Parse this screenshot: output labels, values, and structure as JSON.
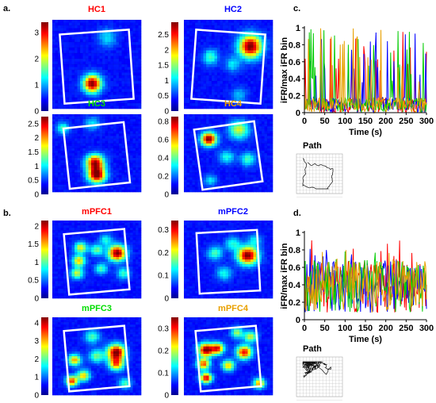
{
  "panel_labels": {
    "a": "a.",
    "b": "b.",
    "c": "c.",
    "d": "d."
  },
  "colors": {
    "HC1": "#ff0000",
    "HC2": "#0000ff",
    "HC3": "#00dd00",
    "HC4": "#e8a000",
    "mPFC1": "#ff0000",
    "mPFC2": "#0000ff",
    "mPFC3": "#00dd00",
    "mPFC4": "#e8a000"
  },
  "path_label": "Path",
  "chart_data": [
    {
      "type": "heatmap",
      "title": "HC1",
      "colorbar_ticks": [
        "0",
        "1",
        "2",
        "3"
      ],
      "colorbar_range": [
        0,
        3.4
      ],
      "fields": [
        {
          "x": 0.45,
          "y": 0.72,
          "amp": 1.0,
          "s": 0.07
        },
        {
          "x": 0.62,
          "y": 0.2,
          "amp": 0.25,
          "s": 0.07
        }
      ]
    },
    {
      "type": "heatmap",
      "title": "HC2",
      "colorbar_ticks": [
        "0",
        "0.5",
        "1",
        "1.5",
        "2",
        "2.5"
      ],
      "colorbar_range": [
        0,
        2.9
      ],
      "fields": [
        {
          "x": 0.75,
          "y": 0.3,
          "amp": 1.0,
          "s": 0.09
        },
        {
          "x": 0.3,
          "y": 0.42,
          "amp": 0.35,
          "s": 0.06
        },
        {
          "x": 0.55,
          "y": 0.5,
          "amp": 0.25,
          "s": 0.06
        },
        {
          "x": 0.62,
          "y": 0.85,
          "amp": 0.2,
          "s": 0.06
        }
      ]
    },
    {
      "type": "heatmap",
      "title": "HC3",
      "colorbar_ticks": [
        "0",
        "0.5",
        "1",
        "1.5",
        "2",
        "2.5"
      ],
      "colorbar_range": [
        0,
        2.75
      ],
      "fields": [
        {
          "x": 0.48,
          "y": 0.62,
          "amp": 0.9,
          "s": 0.07
        },
        {
          "x": 0.5,
          "y": 0.78,
          "amp": 1.0,
          "s": 0.07
        },
        {
          "x": 0.12,
          "y": 0.18,
          "amp": 0.35,
          "s": 0.05
        },
        {
          "x": 0.45,
          "y": 0.12,
          "amp": 0.25,
          "s": 0.06
        }
      ]
    },
    {
      "type": "heatmap",
      "title": "HC4",
      "colorbar_ticks": [
        "0",
        "0.2",
        "0.4",
        "0.6",
        "0.8"
      ],
      "colorbar_range": [
        0,
        0.85
      ],
      "fields": [
        {
          "x": 0.28,
          "y": 0.32,
          "amp": 1.0,
          "s": 0.06
        },
        {
          "x": 0.62,
          "y": 0.2,
          "amp": 0.5,
          "s": 0.08
        },
        {
          "x": 0.48,
          "y": 0.55,
          "amp": 0.3,
          "s": 0.06
        },
        {
          "x": 0.72,
          "y": 0.58,
          "amp": 0.35,
          "s": 0.06
        },
        {
          "x": 0.3,
          "y": 0.85,
          "amp": 0.25,
          "s": 0.05
        }
      ]
    },
    {
      "type": "heatmap",
      "title": "mPFC1",
      "colorbar_ticks": [
        "0",
        "0.5",
        "1",
        "1.5",
        "2"
      ],
      "colorbar_range": [
        0,
        2.15
      ],
      "fields": [
        {
          "x": 0.73,
          "y": 0.42,
          "amp": 1.0,
          "s": 0.07
        },
        {
          "x": 0.32,
          "y": 0.35,
          "amp": 0.55,
          "s": 0.05
        },
        {
          "x": 0.3,
          "y": 0.52,
          "amp": 0.6,
          "s": 0.05
        },
        {
          "x": 0.28,
          "y": 0.68,
          "amp": 0.5,
          "s": 0.05
        },
        {
          "x": 0.5,
          "y": 0.38,
          "amp": 0.4,
          "s": 0.05
        },
        {
          "x": 0.6,
          "y": 0.25,
          "amp": 0.3,
          "s": 0.05
        },
        {
          "x": 0.55,
          "y": 0.62,
          "amp": 0.35,
          "s": 0.05
        },
        {
          "x": 0.8,
          "y": 0.68,
          "amp": 0.35,
          "s": 0.05
        }
      ]
    },
    {
      "type": "heatmap",
      "title": "mPFC2",
      "colorbar_ticks": [
        "0",
        "0.1",
        "0.2",
        "0.3"
      ],
      "colorbar_range": [
        0,
        0.34
      ],
      "fields": [
        {
          "x": 0.72,
          "y": 0.45,
          "amp": 1.0,
          "s": 0.08
        },
        {
          "x": 0.35,
          "y": 0.42,
          "amp": 0.35,
          "s": 0.06
        },
        {
          "x": 0.55,
          "y": 0.3,
          "amp": 0.3,
          "s": 0.06
        },
        {
          "x": 0.45,
          "y": 0.68,
          "amp": 0.3,
          "s": 0.06
        },
        {
          "x": 0.8,
          "y": 0.25,
          "amp": 0.25,
          "s": 0.05
        }
      ]
    },
    {
      "type": "heatmap",
      "title": "mPFC3",
      "colorbar_ticks": [
        "0",
        "1",
        "2",
        "3",
        "4"
      ],
      "colorbar_range": [
        0,
        4.3
      ],
      "fields": [
        {
          "x": 0.72,
          "y": 0.45,
          "amp": 1.0,
          "s": 0.07
        },
        {
          "x": 0.72,
          "y": 0.6,
          "amp": 0.7,
          "s": 0.06
        },
        {
          "x": 0.25,
          "y": 0.55,
          "amp": 0.65,
          "s": 0.05
        },
        {
          "x": 0.35,
          "y": 0.75,
          "amp": 0.6,
          "s": 0.05
        },
        {
          "x": 0.5,
          "y": 0.5,
          "amp": 0.4,
          "s": 0.06
        },
        {
          "x": 0.45,
          "y": 0.25,
          "amp": 0.35,
          "s": 0.06
        },
        {
          "x": 0.22,
          "y": 0.82,
          "amp": 0.8,
          "s": 0.045
        },
        {
          "x": 0.82,
          "y": 0.85,
          "amp": 0.35,
          "s": 0.05
        }
      ]
    },
    {
      "type": "heatmap",
      "title": "mPFC4",
      "colorbar_ticks": [
        "0",
        "0.1",
        "0.2",
        "0.3"
      ],
      "colorbar_range": [
        0,
        0.35
      ],
      "fields": [
        {
          "x": 0.25,
          "y": 0.42,
          "amp": 1.0,
          "s": 0.06
        },
        {
          "x": 0.38,
          "y": 0.4,
          "amp": 0.8,
          "s": 0.05
        },
        {
          "x": 0.68,
          "y": 0.45,
          "amp": 0.85,
          "s": 0.06
        },
        {
          "x": 0.22,
          "y": 0.6,
          "amp": 0.75,
          "s": 0.05
        },
        {
          "x": 0.25,
          "y": 0.78,
          "amp": 0.9,
          "s": 0.045
        },
        {
          "x": 0.5,
          "y": 0.62,
          "amp": 0.6,
          "s": 0.05
        },
        {
          "x": 0.75,
          "y": 0.25,
          "amp": 0.5,
          "s": 0.05
        },
        {
          "x": 0.85,
          "y": 0.85,
          "amp": 0.7,
          "s": 0.045
        },
        {
          "x": 0.6,
          "y": 0.2,
          "amp": 0.45,
          "s": 0.05
        }
      ]
    },
    {
      "type": "line",
      "panel": "c",
      "xlabel": "Time (s)",
      "ylabel": "iFR/max iFR bin",
      "xlim": [
        0,
        300
      ],
      "ylim": [
        0,
        1
      ],
      "x_ticks": [
        "0",
        "50",
        "100",
        "150",
        "200",
        "250",
        "300"
      ],
      "y_ticks": [
        "0",
        "0.2",
        "0.4",
        "0.6",
        "0.8",
        "1"
      ],
      "series_colors": [
        "#ff0000",
        "#0000ff",
        "#00cc00",
        "#e8a000"
      ],
      "density": "sparse"
    },
    {
      "type": "line",
      "panel": "d",
      "xlabel": "Time (s)",
      "ylabel": "iFR/max iFR bin",
      "xlim": [
        0,
        300
      ],
      "ylim": [
        0,
        1
      ],
      "x_ticks": [
        "0",
        "50",
        "100",
        "150",
        "200",
        "250",
        "300"
      ],
      "y_ticks": [
        "0",
        "0.2",
        "0.4",
        "0.6",
        "0.8",
        "1"
      ],
      "series_colors": [
        "#ff0000",
        "#0000ff",
        "#00cc00",
        "#e8a000"
      ],
      "density": "dense"
    }
  ]
}
